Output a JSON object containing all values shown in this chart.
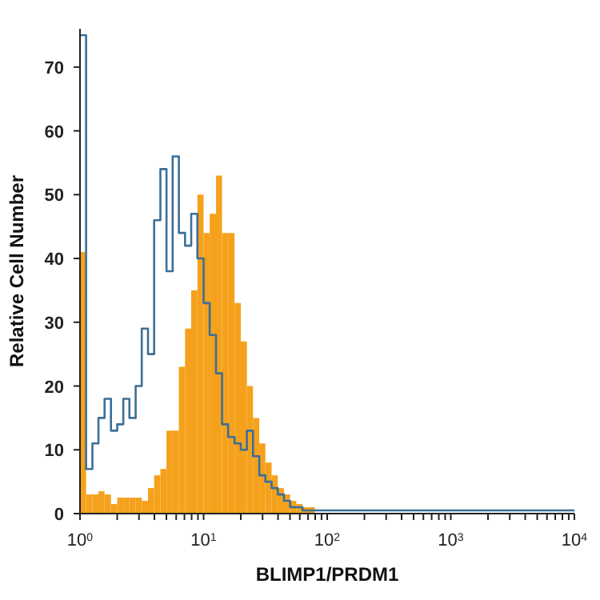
{
  "chart_data": {
    "type": "histogram",
    "xlabel": "BLIMP1/PRDM1",
    "ylabel": "Relative Cell Number",
    "log": "x",
    "bins": [
      1,
      1.12,
      1.26,
      1.41,
      1.58,
      1.78,
      2,
      2.24,
      2.51,
      2.82,
      3.16,
      3.55,
      3.98,
      4.47,
      5.01,
      5.62,
      6.31,
      7.08,
      7.94,
      8.91,
      10,
      11.2,
      12.6,
      14.1,
      15.8,
      17.8,
      20,
      22.4,
      25.1,
      28.2,
      31.6,
      35.5,
      39.8,
      44.7,
      50.1,
      56.2,
      63.1,
      70.8,
      79.4,
      89.1,
      100
    ],
    "series": [
      {
        "color": "#f5a11c",
        "values": [
          41,
          3,
          3,
          3.5,
          3,
          1.5,
          2.5,
          2.5,
          2.5,
          2.5,
          2,
          4,
          6,
          7,
          13,
          13,
          23,
          29,
          35,
          50,
          44,
          47,
          53,
          44,
          44,
          33,
          27,
          20,
          15,
          11,
          8,
          6,
          4,
          3,
          2,
          1.5,
          1,
          1,
          null,
          0
        ]
      },
      {
        "type": "step",
        "color": "#3b6f98",
        "x": [
          1,
          1.12,
          1.26,
          1.41,
          1.58,
          1.78,
          2,
          2.24,
          2.51,
          2.82,
          3.16,
          3.55,
          3.98,
          4.47,
          5.01,
          5.62,
          6.31,
          7.08,
          7.94,
          8.91,
          10,
          11.2,
          12.6,
          14.1,
          15.8,
          17.8,
          20,
          22.4,
          25.1,
          28.2,
          31.6,
          35.5,
          39.8,
          44.7,
          50.1,
          56.2,
          63.1,
          70.8,
          79.4,
          89.1,
          100,
          10000
        ],
        "values": [
          75,
          7,
          11,
          15,
          18,
          13,
          14,
          18,
          15,
          20,
          29,
          25,
          46,
          54,
          38,
          56,
          44,
          42,
          47,
          40,
          33,
          28,
          22,
          14,
          12,
          11,
          10,
          13,
          9,
          6,
          5,
          4,
          3,
          2,
          1,
          1,
          0.5,
          0.5,
          0.5,
          0.5,
          0.5,
          0.5
        ]
      }
    ],
    "xlim": [
      1,
      10000
    ],
    "xticks": [
      {
        "value": 1,
        "label": "10$^{0}$"
      },
      {
        "value": 2,
        "label": null
      },
      {
        "value": 3,
        "label": null
      },
      {
        "value": 4,
        "label": null
      },
      {
        "value": 5,
        "label": null
      },
      {
        "value": 6,
        "label": null
      },
      {
        "value": 7,
        "label": null
      },
      {
        "value": 8,
        "label": null
      },
      {
        "value": 9,
        "label": null
      },
      {
        "value": 10,
        "label": "10$^{1}$"
      },
      {
        "value": 20,
        "label": null
      },
      {
        "value": 30,
        "label": null
      },
      {
        "value": 40,
        "label": null
      },
      {
        "value": 50,
        "label": null
      },
      {
        "value": 60,
        "label": null
      },
      {
        "value": 70,
        "label": null
      },
      {
        "value": 80,
        "label": null
      },
      {
        "value": 90,
        "label": null
      },
      {
        "value": 100,
        "label": "10$^{2}$"
      },
      {
        "value": 200,
        "label": null
      },
      {
        "value": 300,
        "label": null
      },
      {
        "value": 400,
        "label": null
      },
      {
        "value": 500,
        "label": null
      },
      {
        "value": 600,
        "label": null
      },
      {
        "value": 700,
        "label": null
      },
      {
        "value": 800,
        "label": null
      },
      {
        "value": 900,
        "label": null
      },
      {
        "value": 1000,
        "label": "10$^{3}$"
      },
      {
        "value": 2000,
        "label": null
      },
      {
        "value": 3000,
        "label": null
      },
      {
        "value": 4000,
        "label": null
      },
      {
        "value": 5000,
        "label": null
      },
      {
        "value": 6000,
        "label": null
      },
      {
        "value": 7000,
        "label": null
      },
      {
        "value": 8000,
        "label": null
      },
      {
        "value": 9000,
        "label": null
      },
      {
        "value": 10000,
        "label": "10$^{4}$"
      }
    ],
    "ylim": [
      0,
      76
    ],
    "yticks": [
      0,
      10,
      20,
      30,
      40,
      50,
      60,
      70
    ]
  }
}
